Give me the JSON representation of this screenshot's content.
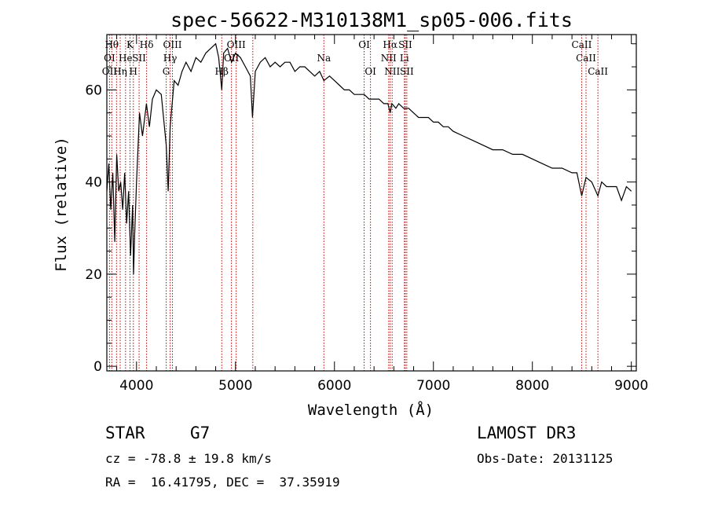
{
  "chart_data": {
    "type": "line",
    "title": "spec-56622-M310138M1_sp05-006.fits",
    "xlabel": "Wavelength (Å)",
    "ylabel": "Flux (relative)",
    "xlim": [
      3700,
      9050
    ],
    "ylim": [
      -1,
      72
    ],
    "xticks": [
      4000,
      5000,
      6000,
      7000,
      8000,
      9000
    ],
    "yticks": [
      0,
      20,
      40,
      60
    ],
    "series": [
      {
        "name": "flux",
        "x": [
          3700,
          3720,
          3740,
          3760,
          3780,
          3800,
          3820,
          3840,
          3860,
          3880,
          3900,
          3920,
          3940,
          3960,
          3970,
          3980,
          4000,
          4030,
          4060,
          4100,
          4130,
          4160,
          4200,
          4250,
          4300,
          4320,
          4340,
          4380,
          4420,
          4460,
          4500,
          4550,
          4600,
          4650,
          4700,
          4750,
          4800,
          4830,
          4861,
          4880,
          4920,
          4960,
          5000,
          5050,
          5100,
          5150,
          5172,
          5200,
          5250,
          5300,
          5350,
          5400,
          5450,
          5500,
          5550,
          5600,
          5650,
          5700,
          5750,
          5800,
          5850,
          5893,
          5950,
          6000,
          6050,
          6100,
          6150,
          6200,
          6250,
          6300,
          6350,
          6400,
          6450,
          6500,
          6540,
          6563,
          6580,
          6620,
          6650,
          6700,
          6750,
          6800,
          6850,
          6900,
          6950,
          7000,
          7050,
          7100,
          7150,
          7200,
          7300,
          7400,
          7500,
          7600,
          7700,
          7800,
          7900,
          8000,
          8100,
          8200,
          8300,
          8400,
          8450,
          8498,
          8542,
          8600,
          8662,
          8700,
          8750,
          8800,
          8850,
          8900,
          8950,
          9000
        ],
        "y": [
          38,
          44,
          34,
          42,
          27,
          46,
          38,
          40,
          34,
          42,
          31,
          38,
          24,
          35,
          20,
          28,
          40,
          55,
          50,
          57,
          52,
          58,
          60,
          59,
          48,
          38,
          52,
          62,
          61,
          64,
          66,
          64,
          67,
          66,
          68,
          69,
          70,
          67,
          60,
          68,
          69,
          66,
          68,
          67,
          65,
          63,
          54,
          64,
          66,
          67,
          65,
          66,
          65,
          66,
          66,
          64,
          65,
          65,
          64,
          63,
          64,
          62,
          63,
          62,
          61,
          60,
          60,
          59,
          59,
          59,
          58,
          58,
          58,
          57,
          57,
          55,
          57,
          56,
          57,
          56,
          56,
          55,
          54,
          54,
          54,
          53,
          53,
          52,
          52,
          51,
          50,
          49,
          48,
          47,
          47,
          46,
          46,
          45,
          44,
          43,
          43,
          42,
          42,
          37,
          41,
          40,
          37,
          40,
          39,
          39,
          39,
          36,
          39,
          38
        ]
      }
    ],
    "reference_lines": {
      "x": [
        3727,
        3750,
        3798,
        3835,
        3889,
        3934,
        3968,
        4026,
        4102,
        4300,
        4340,
        4363,
        4861,
        4959,
        5007,
        5175,
        5893,
        6300,
        6364,
        6548,
        6563,
        6583,
        6707,
        6716,
        6731,
        8498,
        8542,
        8662
      ],
      "color": "#cc0000",
      "style": "dotted"
    },
    "line_labels": [
      {
        "text": "Hθ",
        "x": 3750,
        "row": 1
      },
      {
        "text": "K",
        "x": 3934,
        "row": 1
      },
      {
        "text": "Hδ",
        "x": 4102,
        "row": 1
      },
      {
        "text": "OIII",
        "x": 4363,
        "row": 1
      },
      {
        "text": "OIII",
        "x": 5007,
        "row": 1
      },
      {
        "text": "OI",
        "x": 6300,
        "row": 1
      },
      {
        "text": "Hα",
        "x": 6563,
        "row": 1
      },
      {
        "text": "SII",
        "x": 6716,
        "row": 1
      },
      {
        "text": "CaII",
        "x": 8498,
        "row": 1
      },
      {
        "text": "OI",
        "x": 3727,
        "row": 2
      },
      {
        "text": "He",
        "x": 3889,
        "row": 2
      },
      {
        "text": "SII",
        "x": 4026,
        "row": 2
      },
      {
        "text": "Hγ",
        "x": 4340,
        "row": 2
      },
      {
        "text": "OII",
        "x": 4959,
        "row": 2
      },
      {
        "text": "Na",
        "x": 5893,
        "row": 2
      },
      {
        "text": "NII",
        "x": 6548,
        "row": 2
      },
      {
        "text": "Li",
        "x": 6707,
        "row": 2
      },
      {
        "text": "CaII",
        "x": 8542,
        "row": 2
      },
      {
        "text": "OII",
        "x": 3727,
        "row": 3
      },
      {
        "text": "Hη",
        "x": 3835,
        "row": 3
      },
      {
        "text": "H",
        "x": 3968,
        "row": 3
      },
      {
        "text": "G",
        "x": 4300,
        "row": 3
      },
      {
        "text": "Hβ",
        "x": 4861,
        "row": 3
      },
      {
        "text": "OI",
        "x": 6364,
        "row": 3
      },
      {
        "text": "NII",
        "x": 6583,
        "row": 3
      },
      {
        "text": "SII",
        "x": 6731,
        "row": 3
      },
      {
        "text": "CaII",
        "x": 8662,
        "row": 3
      }
    ]
  },
  "info": {
    "object_class": "STAR",
    "subclass": "G7",
    "survey": "LAMOST DR3",
    "cz": "cz = -78.8 ± 19.8 km/s",
    "obs_date": "Obs-Date: 20131125",
    "coords": "RA =  16.41795, DEC =  37.35919"
  }
}
